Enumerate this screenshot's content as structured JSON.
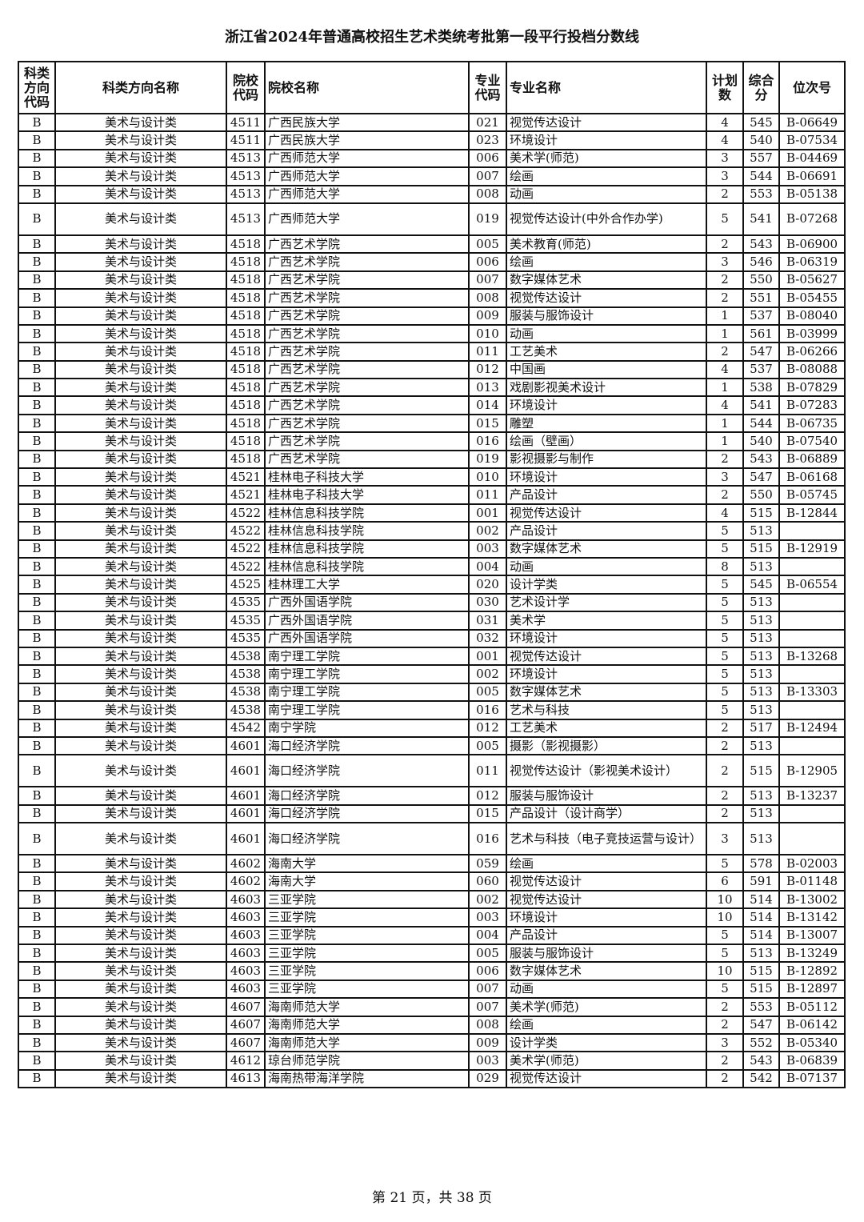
{
  "title": "浙江省2024年普通高校招生艺术类统考批第一段平行投档分数线",
  "headers": [
    "科类方向代码",
    "科类方向名称",
    "院校代码",
    "院校名称",
    "专业代码",
    "专业名称",
    "计划数",
    "综合分",
    "位次号"
  ],
  "rows": [
    [
      "B",
      "美术与设计类",
      "4511",
      "广西民族大学",
      "021",
      "视觉传达设计",
      "4",
      "545",
      "B-06649"
    ],
    [
      "B",
      "美术与设计类",
      "4511",
      "广西民族大学",
      "023",
      "环境设计",
      "4",
      "540",
      "B-07534"
    ],
    [
      "B",
      "美术与设计类",
      "4513",
      "广西师范大学",
      "006",
      "美术学(师范)",
      "3",
      "557",
      "B-04469"
    ],
    [
      "B",
      "美术与设计类",
      "4513",
      "广西师范大学",
      "007",
      "绘画",
      "3",
      "544",
      "B-06691"
    ],
    [
      "B",
      "美术与设计类",
      "4513",
      "广西师范大学",
      "008",
      "动画",
      "2",
      "553",
      "B-05138"
    ],
    [
      "B",
      "美术与设计类",
      "4513",
      "广西师范大学",
      "019",
      "视觉传达设计(中外合作办学)",
      "5",
      "541",
      "B-07268"
    ],
    [
      "B",
      "美术与设计类",
      "4518",
      "广西艺术学院",
      "005",
      "美术教育(师范)",
      "2",
      "543",
      "B-06900"
    ],
    [
      "B",
      "美术与设计类",
      "4518",
      "广西艺术学院",
      "006",
      "绘画",
      "3",
      "546",
      "B-06319"
    ],
    [
      "B",
      "美术与设计类",
      "4518",
      "广西艺术学院",
      "007",
      "数字媒体艺术",
      "2",
      "550",
      "B-05627"
    ],
    [
      "B",
      "美术与设计类",
      "4518",
      "广西艺术学院",
      "008",
      "视觉传达设计",
      "2",
      "551",
      "B-05455"
    ],
    [
      "B",
      "美术与设计类",
      "4518",
      "广西艺术学院",
      "009",
      "服装与服饰设计",
      "1",
      "537",
      "B-08040"
    ],
    [
      "B",
      "美术与设计类",
      "4518",
      "广西艺术学院",
      "010",
      "动画",
      "1",
      "561",
      "B-03999"
    ],
    [
      "B",
      "美术与设计类",
      "4518",
      "广西艺术学院",
      "011",
      "工艺美术",
      "2",
      "547",
      "B-06266"
    ],
    [
      "B",
      "美术与设计类",
      "4518",
      "广西艺术学院",
      "012",
      "中国画",
      "4",
      "537",
      "B-08088"
    ],
    [
      "B",
      "美术与设计类",
      "4518",
      "广西艺术学院",
      "013",
      "戏剧影视美术设计",
      "1",
      "538",
      "B-07829"
    ],
    [
      "B",
      "美术与设计类",
      "4518",
      "广西艺术学院",
      "014",
      "环境设计",
      "4",
      "541",
      "B-07283"
    ],
    [
      "B",
      "美术与设计类",
      "4518",
      "广西艺术学院",
      "015",
      "雕塑",
      "1",
      "544",
      "B-06735"
    ],
    [
      "B",
      "美术与设计类",
      "4518",
      "广西艺术学院",
      "016",
      "绘画（壁画）",
      "1",
      "540",
      "B-07540"
    ],
    [
      "B",
      "美术与设计类",
      "4518",
      "广西艺术学院",
      "019",
      "影视摄影与制作",
      "2",
      "543",
      "B-06889"
    ],
    [
      "B",
      "美术与设计类",
      "4521",
      "桂林电子科技大学",
      "010",
      "环境设计",
      "3",
      "547",
      "B-06168"
    ],
    [
      "B",
      "美术与设计类",
      "4521",
      "桂林电子科技大学",
      "011",
      "产品设计",
      "2",
      "550",
      "B-05745"
    ],
    [
      "B",
      "美术与设计类",
      "4522",
      "桂林信息科技学院",
      "001",
      "视觉传达设计",
      "4",
      "515",
      "B-12844"
    ],
    [
      "B",
      "美术与设计类",
      "4522",
      "桂林信息科技学院",
      "002",
      "产品设计",
      "5",
      "513",
      ""
    ],
    [
      "B",
      "美术与设计类",
      "4522",
      "桂林信息科技学院",
      "003",
      "数字媒体艺术",
      "5",
      "515",
      "B-12919"
    ],
    [
      "B",
      "美术与设计类",
      "4522",
      "桂林信息科技学院",
      "004",
      "动画",
      "8",
      "513",
      ""
    ],
    [
      "B",
      "美术与设计类",
      "4525",
      "桂林理工大学",
      "020",
      "设计学类",
      "5",
      "545",
      "B-06554"
    ],
    [
      "B",
      "美术与设计类",
      "4535",
      "广西外国语学院",
      "030",
      "艺术设计学",
      "5",
      "513",
      ""
    ],
    [
      "B",
      "美术与设计类",
      "4535",
      "广西外国语学院",
      "031",
      "美术学",
      "5",
      "513",
      ""
    ],
    [
      "B",
      "美术与设计类",
      "4535",
      "广西外国语学院",
      "032",
      "环境设计",
      "5",
      "513",
      ""
    ],
    [
      "B",
      "美术与设计类",
      "4538",
      "南宁理工学院",
      "001",
      "视觉传达设计",
      "5",
      "513",
      "B-13268"
    ],
    [
      "B",
      "美术与设计类",
      "4538",
      "南宁理工学院",
      "002",
      "环境设计",
      "5",
      "513",
      ""
    ],
    [
      "B",
      "美术与设计类",
      "4538",
      "南宁理工学院",
      "005",
      "数字媒体艺术",
      "5",
      "513",
      "B-13303"
    ],
    [
      "B",
      "美术与设计类",
      "4538",
      "南宁理工学院",
      "016",
      "艺术与科技",
      "5",
      "513",
      ""
    ],
    [
      "B",
      "美术与设计类",
      "4542",
      "南宁学院",
      "012",
      "工艺美术",
      "2",
      "517",
      "B-12494"
    ],
    [
      "B",
      "美术与设计类",
      "4601",
      "海口经济学院",
      "005",
      "摄影（影视摄影）",
      "2",
      "513",
      ""
    ],
    [
      "B",
      "美术与设计类",
      "4601",
      "海口经济学院",
      "011",
      "视觉传达设计（影视美术设计）",
      "2",
      "515",
      "B-12905"
    ],
    [
      "B",
      "美术与设计类",
      "4601",
      "海口经济学院",
      "012",
      "服装与服饰设计",
      "2",
      "513",
      "B-13237"
    ],
    [
      "B",
      "美术与设计类",
      "4601",
      "海口经济学院",
      "015",
      "产品设计（设计商学）",
      "2",
      "513",
      ""
    ],
    [
      "B",
      "美术与设计类",
      "4601",
      "海口经济学院",
      "016",
      "艺术与科技（电子竞技运营与设计）",
      "3",
      "513",
      ""
    ],
    [
      "B",
      "美术与设计类",
      "4602",
      "海南大学",
      "059",
      "绘画",
      "5",
      "578",
      "B-02003"
    ],
    [
      "B",
      "美术与设计类",
      "4602",
      "海南大学",
      "060",
      "视觉传达设计",
      "6",
      "591",
      "B-01148"
    ],
    [
      "B",
      "美术与设计类",
      "4603",
      "三亚学院",
      "002",
      "视觉传达设计",
      "10",
      "514",
      "B-13002"
    ],
    [
      "B",
      "美术与设计类",
      "4603",
      "三亚学院",
      "003",
      "环境设计",
      "10",
      "514",
      "B-13142"
    ],
    [
      "B",
      "美术与设计类",
      "4603",
      "三亚学院",
      "004",
      "产品设计",
      "5",
      "514",
      "B-13007"
    ],
    [
      "B",
      "美术与设计类",
      "4603",
      "三亚学院",
      "005",
      "服装与服饰设计",
      "5",
      "513",
      "B-13249"
    ],
    [
      "B",
      "美术与设计类",
      "4603",
      "三亚学院",
      "006",
      "数字媒体艺术",
      "10",
      "515",
      "B-12892"
    ],
    [
      "B",
      "美术与设计类",
      "4603",
      "三亚学院",
      "007",
      "动画",
      "5",
      "515",
      "B-12897"
    ],
    [
      "B",
      "美术与设计类",
      "4607",
      "海南师范大学",
      "007",
      "美术学(师范)",
      "2",
      "553",
      "B-05112"
    ],
    [
      "B",
      "美术与设计类",
      "4607",
      "海南师范大学",
      "008",
      "绘画",
      "2",
      "547",
      "B-06142"
    ],
    [
      "B",
      "美术与设计类",
      "4607",
      "海南师范大学",
      "009",
      "设计学类",
      "3",
      "552",
      "B-05340"
    ],
    [
      "B",
      "美术与设计类",
      "4612",
      "琼台师范学院",
      "003",
      "美术学(师范)",
      "2",
      "543",
      "B-06839"
    ],
    [
      "B",
      "美术与设计类",
      "4613",
      "海南热带海洋学院",
      "029",
      "视觉传达设计",
      "2",
      "542",
      "B-07137"
    ]
  ],
  "footer": "第 21 页，共 38 页"
}
